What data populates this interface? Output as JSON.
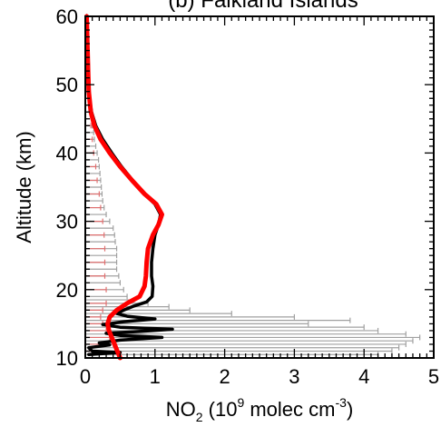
{
  "chart_data": {
    "type": "line",
    "title": "(b) Falkland Islands",
    "xlabel": {
      "prefix": "NO",
      "sub": "2",
      "mid": " (10",
      "sup1": "9",
      "after": " molec cm",
      "sup2": "-3",
      "suffix": ")"
    },
    "ylabel": "Altitude (km)",
    "xlim": [
      0,
      5
    ],
    "ylim": [
      10,
      60
    ],
    "xticks": [
      0,
      1,
      2,
      3,
      4,
      5
    ],
    "yticks": [
      10,
      20,
      30,
      40,
      50,
      60
    ],
    "grid": false,
    "legend": "none",
    "colors": {
      "error_bars": "#a0a0a0",
      "error_bars_red": "#e07070",
      "series_black": "#000000",
      "series_red": "#ff0000"
    },
    "series": [
      {
        "color": "#000000",
        "points": [
          [
            0.02,
            60
          ],
          [
            0.03,
            57
          ],
          [
            0.04,
            54
          ],
          [
            0.05,
            51
          ],
          [
            0.06,
            48
          ],
          [
            0.09,
            46
          ],
          [
            0.15,
            44
          ],
          [
            0.25,
            42
          ],
          [
            0.38,
            40
          ],
          [
            0.52,
            38
          ],
          [
            0.68,
            36
          ],
          [
            0.85,
            34
          ],
          [
            1.0,
            32.5
          ],
          [
            1.08,
            31
          ],
          [
            1.05,
            29.5
          ],
          [
            1.0,
            28
          ],
          [
            0.97,
            26
          ],
          [
            0.95,
            24
          ],
          [
            0.95,
            22
          ],
          [
            0.97,
            20.5
          ],
          [
            0.96,
            19
          ],
          [
            0.88,
            18.2
          ],
          [
            0.7,
            17.6
          ],
          [
            0.55,
            17.0
          ],
          [
            0.45,
            16.5
          ],
          [
            0.6,
            16.1
          ],
          [
            1.0,
            15.7
          ],
          [
            0.55,
            15.3
          ],
          [
            0.25,
            14.9
          ],
          [
            0.5,
            14.5
          ],
          [
            1.25,
            14.2
          ],
          [
            0.8,
            13.9
          ],
          [
            0.3,
            13.6
          ],
          [
            0.5,
            13.3
          ],
          [
            1.1,
            13.0
          ],
          [
            0.5,
            12.6
          ],
          [
            0.2,
            12.2
          ],
          [
            0.35,
            11.9
          ],
          [
            0.05,
            11.5
          ],
          [
            0.1,
            11.0
          ],
          [
            0.5,
            10.8
          ],
          [
            0.05,
            10.5
          ]
        ],
        "errors": [
          [
            60,
            0.02
          ],
          [
            58,
            0.02
          ],
          [
            56,
            0.02
          ],
          [
            54,
            0.03
          ],
          [
            52,
            0.03
          ],
          [
            50,
            0.04
          ],
          [
            48,
            0.05
          ],
          [
            46,
            0.07
          ],
          [
            44,
            0.1
          ],
          [
            43,
            0.12
          ],
          [
            42,
            0.13
          ],
          [
            41,
            0.15
          ],
          [
            40,
            0.17
          ],
          [
            39,
            0.19
          ],
          [
            38,
            0.2
          ],
          [
            37,
            0.21
          ],
          [
            36,
            0.22
          ],
          [
            35,
            0.23
          ],
          [
            34,
            0.24
          ],
          [
            33,
            0.25
          ],
          [
            32,
            0.27
          ],
          [
            31,
            0.3
          ],
          [
            30,
            0.35
          ],
          [
            29,
            0.4
          ],
          [
            28,
            0.42
          ],
          [
            27,
            0.43
          ],
          [
            26,
            0.45
          ],
          [
            25,
            0.45
          ],
          [
            24,
            0.45
          ],
          [
            23,
            0.45
          ],
          [
            22,
            0.48
          ],
          [
            21,
            0.5
          ],
          [
            20,
            0.55
          ],
          [
            19,
            0.6
          ],
          [
            18.5,
            0.7
          ],
          [
            18,
            0.9
          ],
          [
            17.5,
            1.2
          ],
          [
            17,
            1.5
          ],
          [
            16.5,
            2.1
          ],
          [
            16,
            3.0
          ],
          [
            15.5,
            3.8
          ],
          [
            15,
            3.2
          ],
          [
            14.5,
            4.0
          ],
          [
            14,
            4.2
          ],
          [
            13.5,
            4.6
          ],
          [
            13,
            4.8
          ],
          [
            12.5,
            4.7
          ],
          [
            12,
            4.6
          ],
          [
            11.5,
            4.5
          ],
          [
            11,
            4.4
          ],
          [
            10.5,
            4.2
          ]
        ]
      },
      {
        "color": "#ff0000",
        "points": [
          [
            0.02,
            60
          ],
          [
            0.03,
            56
          ],
          [
            0.04,
            52
          ],
          [
            0.05,
            49
          ],
          [
            0.08,
            46
          ],
          [
            0.13,
            44
          ],
          [
            0.22,
            42
          ],
          [
            0.35,
            40
          ],
          [
            0.5,
            38
          ],
          [
            0.67,
            36
          ],
          [
            0.85,
            34
          ],
          [
            1.02,
            32.5
          ],
          [
            1.1,
            31
          ],
          [
            1.05,
            29.5
          ],
          [
            0.97,
            28
          ],
          [
            0.9,
            26
          ],
          [
            0.88,
            24
          ],
          [
            0.87,
            22
          ],
          [
            0.85,
            20.5
          ],
          [
            0.78,
            19
          ],
          [
            0.6,
            18
          ],
          [
            0.45,
            17
          ],
          [
            0.35,
            16
          ],
          [
            0.32,
            15
          ],
          [
            0.34,
            14
          ],
          [
            0.38,
            13
          ],
          [
            0.42,
            12
          ],
          [
            0.46,
            11
          ],
          [
            0.5,
            10
          ]
        ],
        "errors": [
          [
            44,
            0.08
          ],
          [
            42,
            0.1
          ],
          [
            40,
            0.12
          ],
          [
            38,
            0.15
          ],
          [
            36,
            0.17
          ],
          [
            34,
            0.2
          ],
          [
            32,
            0.22
          ],
          [
            30,
            0.25
          ],
          [
            28,
            0.27
          ],
          [
            26,
            0.28
          ],
          [
            24,
            0.28
          ],
          [
            22,
            0.28
          ],
          [
            20,
            0.3
          ],
          [
            18,
            0.3
          ],
          [
            17,
            0.25
          ],
          [
            16,
            0.22
          ],
          [
            15,
            0.25
          ],
          [
            14,
            0.3
          ],
          [
            13,
            0.35
          ],
          [
            12,
            0.4
          ],
          [
            11,
            0.45
          ]
        ]
      }
    ]
  }
}
